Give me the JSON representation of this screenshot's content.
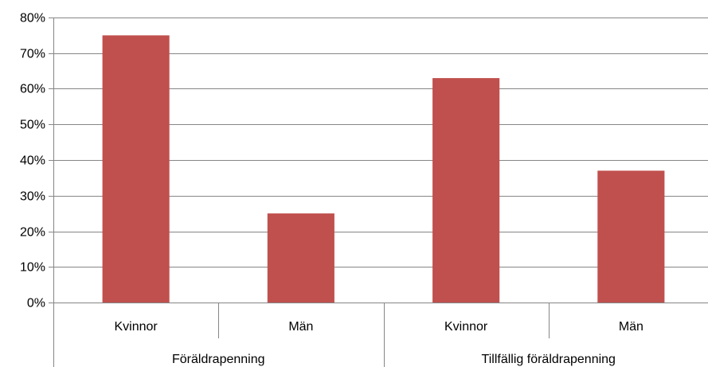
{
  "chart_data": {
    "type": "bar",
    "title": "",
    "xlabel": "",
    "ylabel": "",
    "ylim": [
      0,
      0.8
    ],
    "yticks": [
      "0%",
      "10%",
      "20%",
      "30%",
      "40%",
      "50%",
      "60%",
      "70%",
      "80%"
    ],
    "grid": true,
    "legend": "none",
    "bar_color": "#C0504D",
    "grid_color": "#868686",
    "groups": [
      {
        "label": "Föräldrapenning",
        "categories": [
          "Kvinnor",
          "Män"
        ],
        "values": [
          0.75,
          0.25
        ]
      },
      {
        "label": "Tillfällig föräldrapenning",
        "categories": [
          "Kvinnor",
          "Män"
        ],
        "values": [
          0.63,
          0.37
        ]
      }
    ]
  }
}
